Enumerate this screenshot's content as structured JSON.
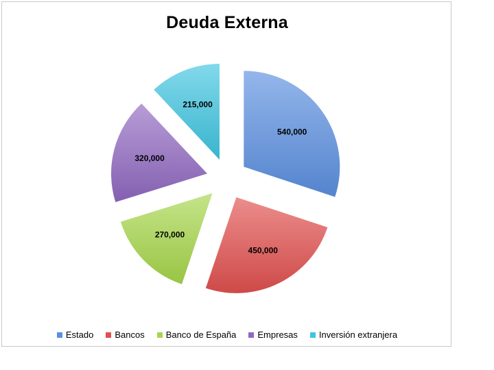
{
  "chart_data": {
    "type": "pie",
    "title": "Deuda Externa",
    "categories": [
      "Estado",
      "Bancos",
      "Banco de España",
      "Empresas",
      "Inversión extranjera"
    ],
    "values": [
      540000,
      450000,
      270000,
      320000,
      215000
    ],
    "value_labels": [
      "540,000",
      "450,000",
      "270,000",
      "320,000",
      "215,000"
    ],
    "colors": [
      "#5b8fe0",
      "#e0504e",
      "#a6d64a",
      "#9068c0",
      "#3ec4e0"
    ],
    "legend_position": "bottom",
    "exploded": true
  }
}
